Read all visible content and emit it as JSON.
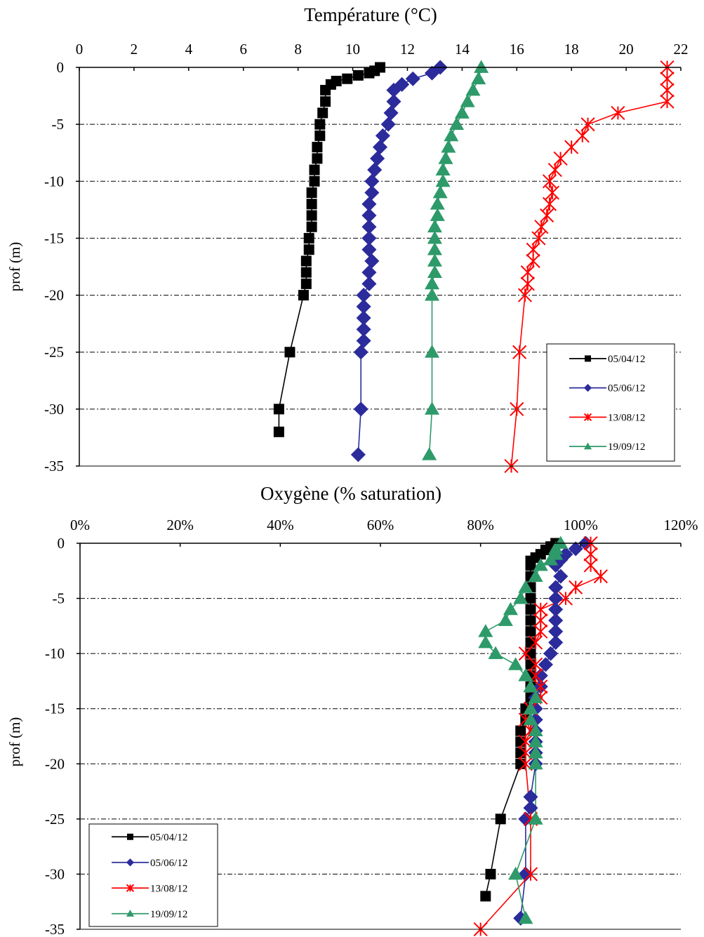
{
  "chart_data": [
    {
      "type": "line",
      "title": "Température (°C)",
      "xlabel": "",
      "ylabel": "prof (m)",
      "xlim": [
        0,
        22
      ],
      "ylim": [
        -35,
        0
      ],
      "x_ticks": [
        "0",
        "2",
        "4",
        "6",
        "8",
        "10",
        "12",
        "14",
        "16",
        "18",
        "20",
        "22"
      ],
      "y_ticks": [
        "0",
        "-5",
        "-10",
        "-15",
        "-20",
        "-25",
        "-30",
        "-35"
      ],
      "x_axis_position": "top",
      "grid": "horizontal dash-dot",
      "legend_position": "bottom-right",
      "series": [
        {
          "name": "05/04/12",
          "color": "#000000",
          "marker": "square",
          "points": [
            [
              11.0,
              0
            ],
            [
              10.8,
              -0.3
            ],
            [
              10.6,
              -0.5
            ],
            [
              10.2,
              -0.7
            ],
            [
              9.8,
              -1
            ],
            [
              9.4,
              -1.2
            ],
            [
              9.2,
              -1.5
            ],
            [
              9.0,
              -2
            ],
            [
              9.0,
              -3
            ],
            [
              8.9,
              -4
            ],
            [
              8.8,
              -5
            ],
            [
              8.8,
              -6
            ],
            [
              8.7,
              -7
            ],
            [
              8.7,
              -8
            ],
            [
              8.6,
              -9
            ],
            [
              8.6,
              -10
            ],
            [
              8.5,
              -11
            ],
            [
              8.5,
              -12
            ],
            [
              8.5,
              -13
            ],
            [
              8.5,
              -14
            ],
            [
              8.4,
              -15
            ],
            [
              8.4,
              -16
            ],
            [
              8.3,
              -17
            ],
            [
              8.3,
              -18
            ],
            [
              8.3,
              -19
            ],
            [
              8.2,
              -20
            ],
            [
              7.7,
              -25
            ],
            [
              7.3,
              -30
            ],
            [
              7.3,
              -32
            ]
          ]
        },
        {
          "name": "05/06/12",
          "color": "#2b2b9b",
          "marker": "diamond",
          "points": [
            [
              13.2,
              0
            ],
            [
              12.9,
              -0.5
            ],
            [
              12.2,
              -1
            ],
            [
              11.8,
              -1.5
            ],
            [
              11.5,
              -2
            ],
            [
              11.5,
              -3
            ],
            [
              11.4,
              -4
            ],
            [
              11.3,
              -5
            ],
            [
              11.1,
              -6
            ],
            [
              11.0,
              -7
            ],
            [
              10.9,
              -8
            ],
            [
              10.8,
              -9
            ],
            [
              10.7,
              -10
            ],
            [
              10.7,
              -11
            ],
            [
              10.6,
              -12
            ],
            [
              10.6,
              -13
            ],
            [
              10.6,
              -14
            ],
            [
              10.6,
              -15
            ],
            [
              10.6,
              -16
            ],
            [
              10.7,
              -17
            ],
            [
              10.6,
              -18
            ],
            [
              10.6,
              -19
            ],
            [
              10.4,
              -20
            ],
            [
              10.4,
              -21
            ],
            [
              10.4,
              -22
            ],
            [
              10.4,
              -23
            ],
            [
              10.4,
              -24
            ],
            [
              10.3,
              -25
            ],
            [
              10.3,
              -30
            ],
            [
              10.2,
              -34
            ]
          ]
        },
        {
          "name": "13/08/12",
          "color": "#ff0000",
          "marker": "star",
          "points": [
            [
              21.5,
              0
            ],
            [
              21.5,
              -1
            ],
            [
              21.5,
              -2
            ],
            [
              21.5,
              -3
            ],
            [
              19.7,
              -4
            ],
            [
              18.6,
              -5
            ],
            [
              18.4,
              -6
            ],
            [
              18.0,
              -7
            ],
            [
              17.6,
              -8
            ],
            [
              17.4,
              -9
            ],
            [
              17.2,
              -10
            ],
            [
              17.3,
              -11
            ],
            [
              17.2,
              -12
            ],
            [
              17.1,
              -13
            ],
            [
              16.9,
              -14
            ],
            [
              16.8,
              -15
            ],
            [
              16.6,
              -16
            ],
            [
              16.6,
              -17
            ],
            [
              16.4,
              -18
            ],
            [
              16.4,
              -19
            ],
            [
              16.3,
              -20
            ],
            [
              16.1,
              -25
            ],
            [
              16.0,
              -30
            ],
            [
              15.8,
              -35
            ]
          ]
        },
        {
          "name": "19/09/12",
          "color": "#2e9a6a",
          "marker": "triangle",
          "points": [
            [
              14.7,
              0
            ],
            [
              14.6,
              -1
            ],
            [
              14.4,
              -2
            ],
            [
              14.2,
              -3
            ],
            [
              14.0,
              -4
            ],
            [
              13.8,
              -5
            ],
            [
              13.6,
              -6
            ],
            [
              13.5,
              -7
            ],
            [
              13.4,
              -8
            ],
            [
              13.3,
              -9
            ],
            [
              13.3,
              -10
            ],
            [
              13.2,
              -11
            ],
            [
              13.1,
              -12
            ],
            [
              13.1,
              -13
            ],
            [
              13.0,
              -14
            ],
            [
              13.0,
              -15
            ],
            [
              13.0,
              -16
            ],
            [
              13.0,
              -17
            ],
            [
              13.0,
              -18
            ],
            [
              12.9,
              -19
            ],
            [
              12.9,
              -20
            ],
            [
              12.9,
              -25
            ],
            [
              12.9,
              -30
            ],
            [
              12.8,
              -34
            ]
          ]
        }
      ]
    },
    {
      "type": "line",
      "title": "Oxygène (% saturation)",
      "xlabel": "",
      "ylabel": "prof (m)",
      "xlim": [
        0,
        120
      ],
      "ylim": [
        -35,
        0
      ],
      "x_ticks": [
        "0%",
        "20%",
        "40%",
        "60%",
        "80%",
        "100%",
        "120%"
      ],
      "y_ticks": [
        "0",
        "-5",
        "-10",
        "-15",
        "-20",
        "-25",
        "-30",
        "-35"
      ],
      "x_axis_position": "top",
      "grid": "horizontal dash-dot",
      "legend_position": "bottom-left",
      "series": [
        {
          "name": "05/04/12",
          "color": "#000000",
          "marker": "square",
          "points": [
            [
              95,
              0
            ],
            [
              94,
              -0.3
            ],
            [
              93,
              -0.6
            ],
            [
              92,
              -1
            ],
            [
              91,
              -1.3
            ],
            [
              90,
              -1.6
            ],
            [
              90,
              -2
            ],
            [
              90,
              -3
            ],
            [
              90,
              -4
            ],
            [
              90,
              -5
            ],
            [
              90,
              -6
            ],
            [
              90,
              -7
            ],
            [
              90,
              -8
            ],
            [
              90,
              -9
            ],
            [
              90,
              -10
            ],
            [
              90,
              -11
            ],
            [
              90,
              -12
            ],
            [
              90,
              -13
            ],
            [
              90,
              -14
            ],
            [
              89,
              -15
            ],
            [
              89,
              -16
            ],
            [
              88,
              -17
            ],
            [
              88,
              -18
            ],
            [
              88,
              -19
            ],
            [
              88,
              -20
            ],
            [
              84,
              -25
            ],
            [
              82,
              -30
            ],
            [
              81,
              -32
            ]
          ]
        },
        {
          "name": "05/06/12",
          "color": "#2b2b9b",
          "marker": "diamond",
          "points": [
            [
              101,
              0
            ],
            [
              99,
              -0.5
            ],
            [
              97,
              -1
            ],
            [
              96,
              -1.5
            ],
            [
              95,
              -2
            ],
            [
              96,
              -3
            ],
            [
              95,
              -4
            ],
            [
              95,
              -5
            ],
            [
              95,
              -6
            ],
            [
              95,
              -7
            ],
            [
              95,
              -8
            ],
            [
              95,
              -9
            ],
            [
              94,
              -10
            ],
            [
              93,
              -11
            ],
            [
              92,
              -12
            ],
            [
              92,
              -13
            ],
            [
              91,
              -14
            ],
            [
              91,
              -15
            ],
            [
              91,
              -16
            ],
            [
              91,
              -17
            ],
            [
              91,
              -18
            ],
            [
              91,
              -19
            ],
            [
              91,
              -20
            ],
            [
              90,
              -23
            ],
            [
              90,
              -24
            ],
            [
              89,
              -25
            ],
            [
              89,
              -30
            ],
            [
              88,
              -34
            ]
          ]
        },
        {
          "name": "13/08/12",
          "color": "#ff0000",
          "marker": "star",
          "points": [
            [
              102,
              0
            ],
            [
              102,
              -1
            ],
            [
              102,
              -2
            ],
            [
              104,
              -3
            ],
            [
              99,
              -4
            ],
            [
              97,
              -5
            ],
            [
              92,
              -6
            ],
            [
              92,
              -7
            ],
            [
              92,
              -8
            ],
            [
              91,
              -9
            ],
            [
              89,
              -10
            ],
            [
              91,
              -11
            ],
            [
              91,
              -12
            ],
            [
              92,
              -13
            ],
            [
              92,
              -14
            ],
            [
              90,
              -15
            ],
            [
              89,
              -16
            ],
            [
              90,
              -17
            ],
            [
              89,
              -18
            ],
            [
              89,
              -19
            ],
            [
              89,
              -20
            ],
            [
              90,
              -25
            ],
            [
              90,
              -30
            ],
            [
              80,
              -35
            ]
          ]
        },
        {
          "name": "19/09/12",
          "color": "#2e9a6a",
          "marker": "triangle",
          "points": [
            [
              96,
              0
            ],
            [
              95,
              -0.5
            ],
            [
              95,
              -1
            ],
            [
              94,
              -1.5
            ],
            [
              92,
              -2
            ],
            [
              91,
              -3
            ],
            [
              89,
              -4
            ],
            [
              88,
              -5
            ],
            [
              86,
              -6
            ],
            [
              85,
              -7
            ],
            [
              81,
              -8
            ],
            [
              81,
              -9
            ],
            [
              83,
              -10
            ],
            [
              87,
              -11
            ],
            [
              89,
              -12
            ],
            [
              90,
              -13
            ],
            [
              91,
              -14
            ],
            [
              90,
              -15
            ],
            [
              90,
              -16
            ],
            [
              91,
              -17
            ],
            [
              91,
              -18
            ],
            [
              91,
              -19
            ],
            [
              91,
              -20
            ],
            [
              91,
              -25
            ],
            [
              87,
              -30
            ],
            [
              89,
              -34
            ]
          ]
        }
      ]
    }
  ]
}
